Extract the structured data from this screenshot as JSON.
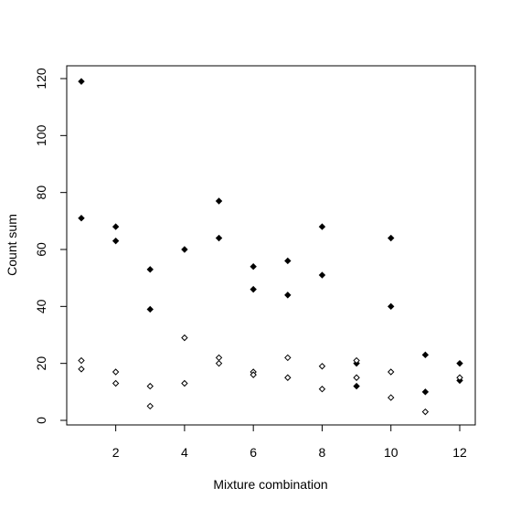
{
  "chart_data": {
    "type": "scatter",
    "title": "",
    "xlabel": "Mixture combination",
    "ylabel": "Count sum",
    "xlim": [
      0.6,
      12.4
    ],
    "ylim": [
      -3,
      124
    ],
    "x_ticks": [
      2,
      4,
      6,
      8,
      10,
      12
    ],
    "y_ticks": [
      0,
      20,
      40,
      60,
      80,
      100,
      120
    ],
    "grid": false,
    "legend": "none",
    "series": [
      {
        "marker": "filled-diamond",
        "color": "#000000",
        "points": [
          {
            "x": 1,
            "y": 119
          },
          {
            "x": 1,
            "y": 71
          },
          {
            "x": 2,
            "y": 68
          },
          {
            "x": 2,
            "y": 63
          },
          {
            "x": 3,
            "y": 53
          },
          {
            "x": 3,
            "y": 39
          },
          {
            "x": 4,
            "y": 60
          },
          {
            "x": 5,
            "y": 77
          },
          {
            "x": 5,
            "y": 64
          },
          {
            "x": 6,
            "y": 54
          },
          {
            "x": 6,
            "y": 46
          },
          {
            "x": 7,
            "y": 56
          },
          {
            "x": 7,
            "y": 44
          },
          {
            "x": 8,
            "y": 68
          },
          {
            "x": 8,
            "y": 51
          },
          {
            "x": 9,
            "y": 20
          },
          {
            "x": 9,
            "y": 12
          },
          {
            "x": 10,
            "y": 64
          },
          {
            "x": 10,
            "y": 40
          },
          {
            "x": 11,
            "y": 23
          },
          {
            "x": 11,
            "y": 10
          },
          {
            "x": 12,
            "y": 20
          },
          {
            "x": 12,
            "y": 14
          }
        ]
      },
      {
        "marker": "open-diamond",
        "color": "#000000",
        "points": [
          {
            "x": 1,
            "y": 21
          },
          {
            "x": 1,
            "y": 18
          },
          {
            "x": 2,
            "y": 17
          },
          {
            "x": 2,
            "y": 13
          },
          {
            "x": 3,
            "y": 12
          },
          {
            "x": 3,
            "y": 5
          },
          {
            "x": 4,
            "y": 29
          },
          {
            "x": 4,
            "y": 13
          },
          {
            "x": 5,
            "y": 22
          },
          {
            "x": 5,
            "y": 20
          },
          {
            "x": 6,
            "y": 17
          },
          {
            "x": 6,
            "y": 16
          },
          {
            "x": 7,
            "y": 22
          },
          {
            "x": 7,
            "y": 15
          },
          {
            "x": 8,
            "y": 19
          },
          {
            "x": 8,
            "y": 11
          },
          {
            "x": 9,
            "y": 21
          },
          {
            "x": 9,
            "y": 15
          },
          {
            "x": 10,
            "y": 17
          },
          {
            "x": 10,
            "y": 8
          },
          {
            "x": 11,
            "y": 3
          },
          {
            "x": 12,
            "y": 15
          }
        ]
      }
    ]
  }
}
